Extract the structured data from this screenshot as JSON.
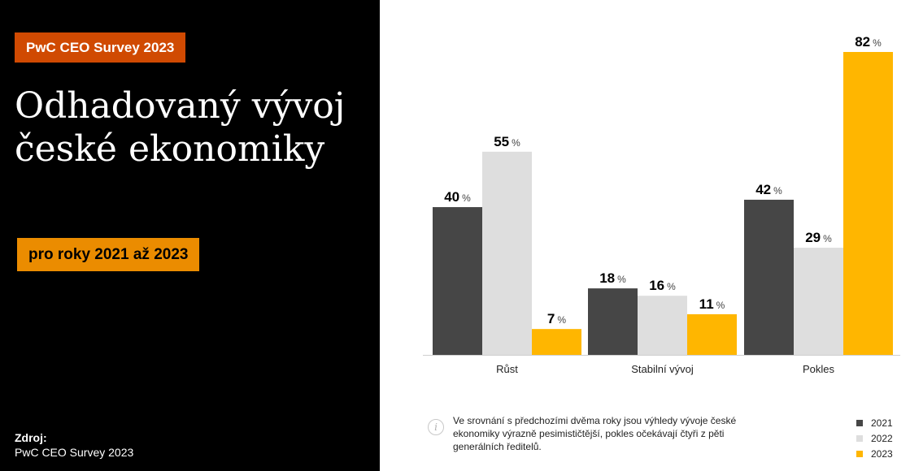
{
  "badge_top": "PwC CEO Survey 2023",
  "title": "Odhadovaný vývoj české ekonomiky",
  "badge_sub": "pro roky 2021 až 2023",
  "source": {
    "label": "Zdroj:",
    "text": "PwC CEO Survey 2023"
  },
  "note": "Ve srovnání s předchozími dvěma roky jsou výhledy vývoje české ekonomiky výrazně pesimističtější, pokles očekávají čtyři z pěti generálních ředitelů.",
  "colors": {
    "d2021": "#464646",
    "d2022": "#dedede",
    "d2023": "#ffb600",
    "badge_top": "#d04a02",
    "badge_sub": "#eb8c00"
  },
  "icons": {
    "note": "info-icon"
  },
  "chart_data": {
    "type": "bar",
    "categories": [
      "Růst",
      "Stabilní vývoj",
      "Pokles"
    ],
    "series": [
      {
        "name": "2021",
        "values": [
          40,
          18,
          42
        ]
      },
      {
        "name": "2022",
        "values": [
          55,
          16,
          29
        ]
      },
      {
        "name": "2023",
        "values": [
          7,
          11,
          82
        ]
      }
    ],
    "unit": "%",
    "ylim": [
      0,
      82
    ],
    "grid": false,
    "legend": "bottom-right"
  }
}
